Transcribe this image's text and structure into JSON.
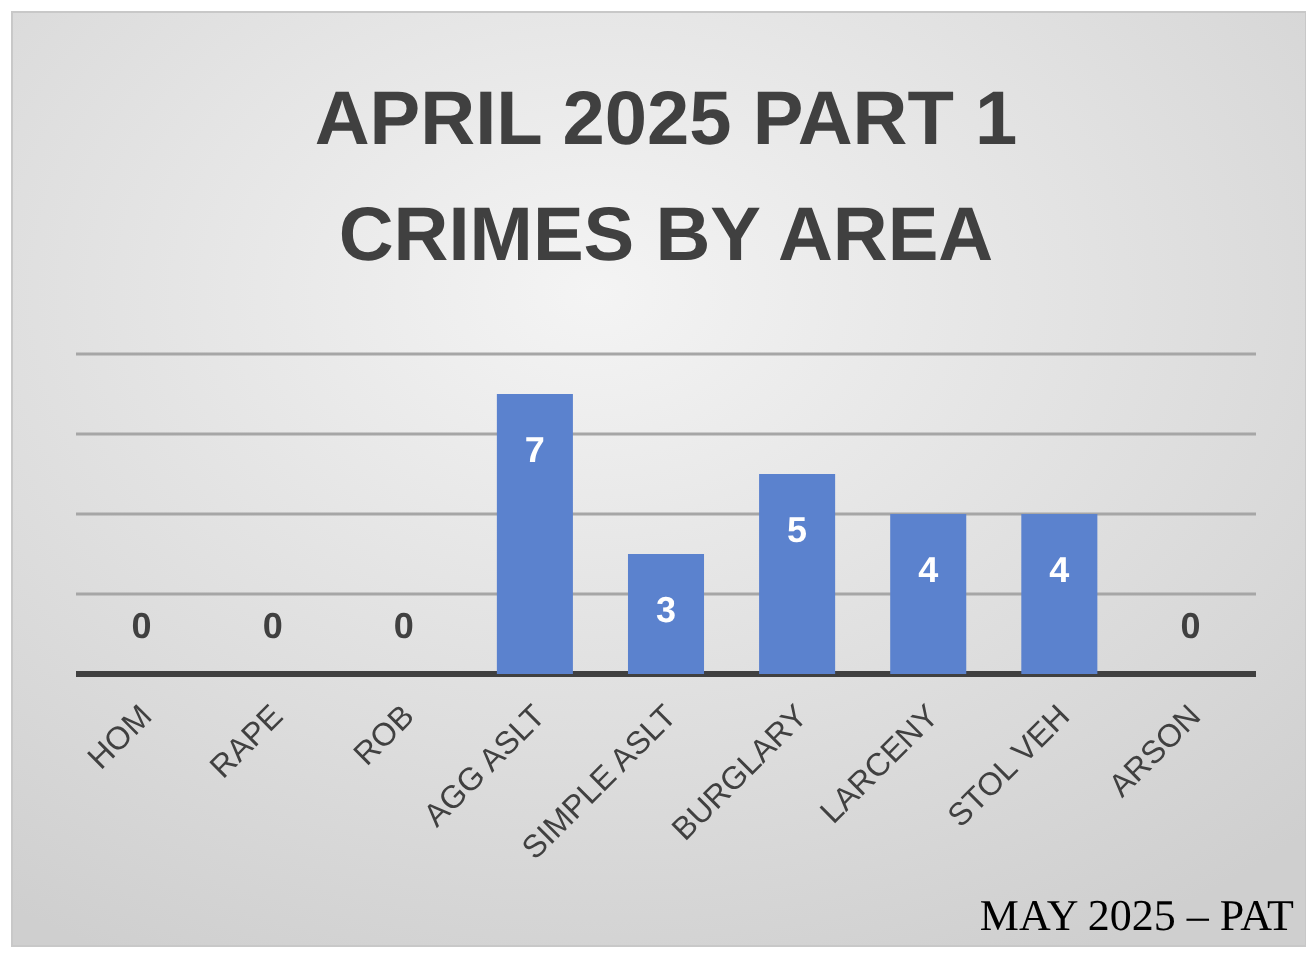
{
  "chart_data": {
    "type": "bar",
    "title": "APRIL 2025 PART 1\nCRIMES BY AREA",
    "categories": [
      "HOM",
      "RAPE",
      "ROB",
      "AGG ASLT",
      "SIMPLE ASLT",
      "BURGLARY",
      "LARCENY",
      "STOL VEH",
      "ARSON"
    ],
    "values": [
      0,
      0,
      0,
      7,
      3,
      5,
      4,
      4,
      0
    ],
    "color": "#5b82ce",
    "ylim": [
      0,
      8
    ],
    "yticks": [
      {
        "value": 0,
        "label": null
      },
      {
        "value": 2,
        "label": null
      },
      {
        "value": 4,
        "label": null
      },
      {
        "value": 6,
        "label": null
      },
      {
        "value": 8,
        "label": null
      }
    ],
    "grid": "y",
    "tick_labels": "x",
    "data_labels": true,
    "annotations": [
      "MAY 2025 – PAT"
    ]
  }
}
